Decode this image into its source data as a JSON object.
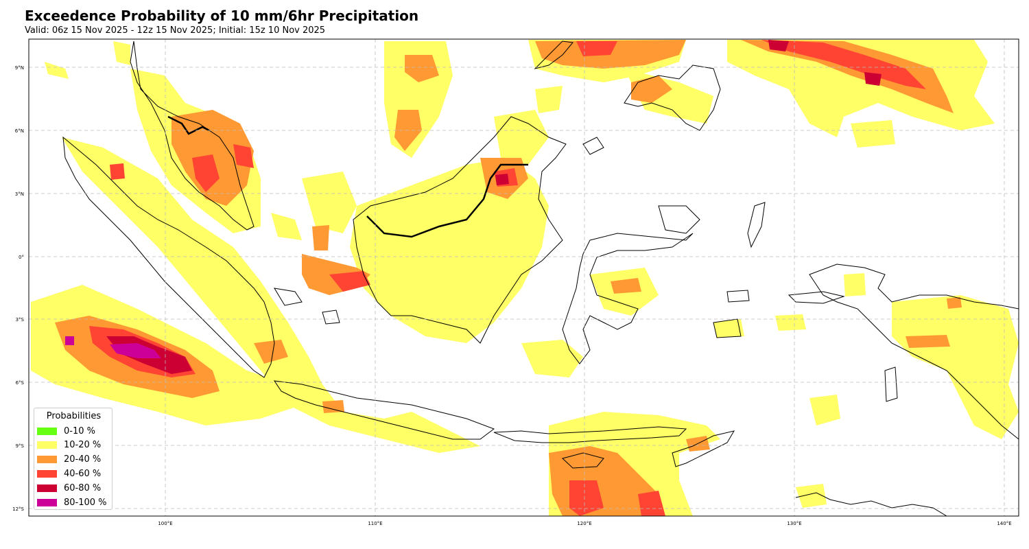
{
  "title": "Exceedence Probability of 10 mm/6hr Precipitation",
  "subtitle": "Valid: 06z 15 Nov 2025 - 12z 15 Nov 2025; Initial: 15z 10 Nov 2025",
  "map": {
    "lon_range": [
      93.5,
      141.0
    ],
    "lat_range": [
      -12.5,
      10.3
    ],
    "lon_ticks": [
      {
        "value": 100,
        "label": "100°E"
      },
      {
        "value": 110,
        "label": "110°E"
      },
      {
        "value": 120,
        "label": "120°E"
      },
      {
        "value": 130,
        "label": "130°E"
      },
      {
        "value": 140,
        "label": "140°E"
      }
    ],
    "lat_ticks": [
      {
        "value": 9,
        "label": "9°N"
      },
      {
        "value": 6,
        "label": "6°N"
      },
      {
        "value": 3,
        "label": "3°N"
      },
      {
        "value": 0,
        "label": "0°"
      },
      {
        "value": -3,
        "label": "3°S"
      },
      {
        "value": -6,
        "label": "6°S"
      },
      {
        "value": -9,
        "label": "9°S"
      },
      {
        "value": -12,
        "label": "12°S"
      }
    ],
    "gridlines": true,
    "colors": {
      "p10_20": "#ffff66",
      "p20_40": "#ff9933",
      "p40_60": "#ff4433",
      "p60_80": "#cc0033",
      "p80_100": "#cc0099",
      "coast": "#000000"
    }
  },
  "legend": {
    "title": "Probabilities",
    "placement": "bottom-left",
    "items": [
      {
        "label": "0-10 %",
        "color": "#66ff11"
      },
      {
        "label": "10-20 %",
        "color": "#ffff66"
      },
      {
        "label": "20-40 %",
        "color": "#ff9933"
      },
      {
        "label": "40-60 %",
        "color": "#ff4433"
      },
      {
        "label": "60-80 %",
        "color": "#cc0033"
      },
      {
        "label": "80-100 %",
        "color": "#cc0099"
      }
    ]
  }
}
